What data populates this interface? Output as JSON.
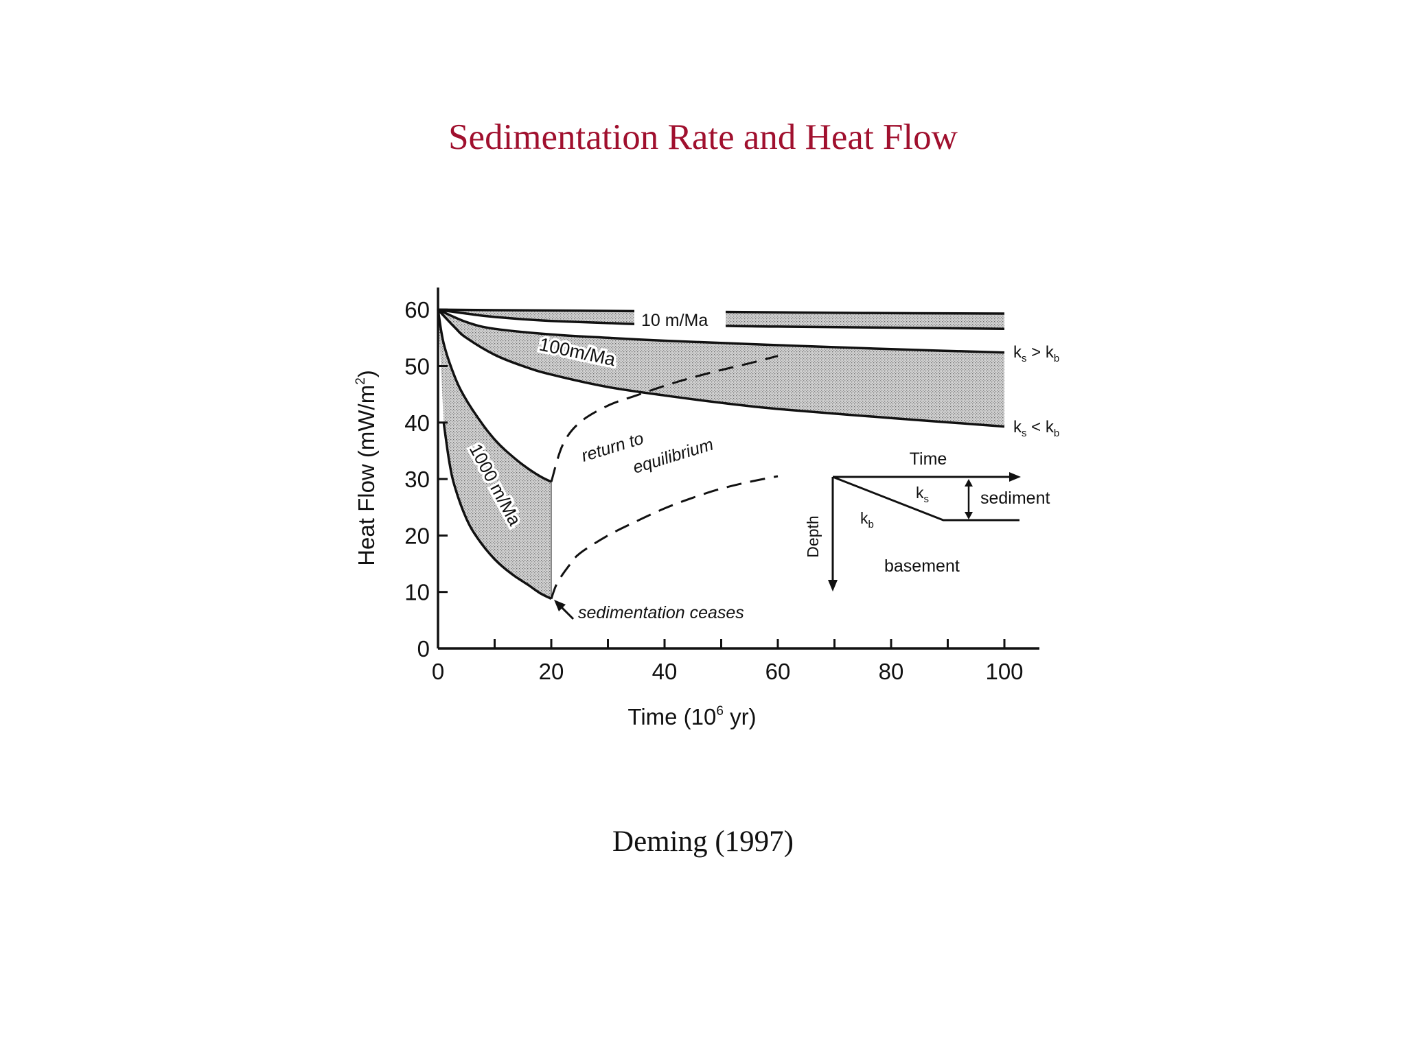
{
  "slide": {
    "title": "Sedimentation Rate and Heat Flow",
    "credit": "Deming (1997)"
  },
  "chart_data": {
    "type": "line",
    "xlabel": "Time (10",
    "xlabel_sup": "6",
    "xlabel_tail": " yr)",
    "ylabel": "Heat Flow (mW/m",
    "ylabel_sup": "2",
    "ylabel_tail": ")",
    "xlim": [
      0,
      105
    ],
    "ylim": [
      0,
      62
    ],
    "x_ticks": [
      0,
      20,
      40,
      60,
      80,
      100
    ],
    "y_ticks": [
      0,
      10,
      20,
      30,
      40,
      50,
      60
    ],
    "grid": false,
    "bands": [
      {
        "label": "10 m/Ma",
        "upper": {
          "x": [
            0,
            10,
            25,
            50,
            75,
            100
          ],
          "y": [
            60,
            59.9,
            59.8,
            59.6,
            59.4,
            59.3
          ]
        },
        "lower": {
          "x": [
            0,
            5,
            10,
            20,
            40,
            60,
            80,
            100
          ],
          "y": [
            60,
            59.3,
            58.7,
            58.0,
            57.3,
            57.0,
            56.8,
            56.6
          ]
        }
      },
      {
        "label": "100 m/Ma",
        "upper": {
          "x": [
            0,
            5,
            10,
            20,
            30,
            40,
            60,
            80,
            100
          ],
          "y": [
            60,
            57.8,
            56.6,
            55.6,
            55.0,
            54.5,
            53.7,
            53.0,
            52.4
          ]
        },
        "lower": {
          "x": [
            0,
            3,
            5,
            10,
            15,
            20,
            30,
            40,
            50,
            60,
            80,
            100
          ],
          "y": [
            60,
            56.8,
            55.0,
            52.0,
            50.0,
            48.5,
            46.3,
            44.8,
            43.5,
            42.4,
            40.8,
            39.3
          ]
        }
      },
      {
        "label": "1000 m/Ma",
        "upper": {
          "x": [
            0,
            1,
            3,
            5,
            8,
            10,
            12,
            15,
            18,
            20
          ],
          "y": [
            60,
            54.0,
            48.0,
            44.0,
            39.5,
            37.0,
            35.0,
            32.5,
            30.5,
            29.5
          ]
        },
        "lower": {
          "x": [
            1,
            2,
            3,
            5,
            7,
            10,
            13,
            16,
            18,
            20
          ],
          "y": [
            40.0,
            33.0,
            28.5,
            23.0,
            19.5,
            15.8,
            13.2,
            11.2,
            9.8,
            8.8
          ]
        }
      }
    ],
    "recovery_curves": [
      {
        "x": [
          20,
          22,
          25,
          30,
          35,
          40,
          45,
          50,
          55,
          60
        ],
        "y": [
          29.5,
          36.0,
          40.0,
          43.0,
          44.8,
          46.5,
          48.0,
          49.3,
          50.5,
          51.8
        ]
      },
      {
        "x": [
          20,
          21,
          23,
          25,
          30,
          35,
          40,
          45,
          50,
          55,
          60
        ],
        "y": [
          8.8,
          11.5,
          14.5,
          16.8,
          20.0,
          22.5,
          24.8,
          26.7,
          28.3,
          29.5,
          30.5
        ]
      }
    ],
    "annotations": {
      "band_10": "10 m/Ma",
      "band_100": "100m/Ma",
      "band_1000": "1000 m/Ma",
      "ks_gt_kb_k1": "k",
      "ks_gt_kb_s1": "s",
      "ks_gt_kb_op": " > ",
      "ks_gt_kb_k2": "k",
      "ks_gt_kb_s2": "b",
      "ks_lt_kb_k1": "k",
      "ks_lt_kb_s1": "s",
      "ks_lt_kb_op": " < ",
      "ks_lt_kb_k2": "k",
      "ks_lt_kb_s2": "b",
      "return_1": "return  to",
      "return_2": "equilibrium",
      "ceases": "sedimentation ceases"
    },
    "inset": {
      "time_label": "Time",
      "depth_label": "Depth",
      "ks_k": "k",
      "ks_sub": "s",
      "kb_k": "k",
      "kb_sub": "b",
      "sediment_label": "sediment",
      "basement_label": "basement"
    }
  }
}
